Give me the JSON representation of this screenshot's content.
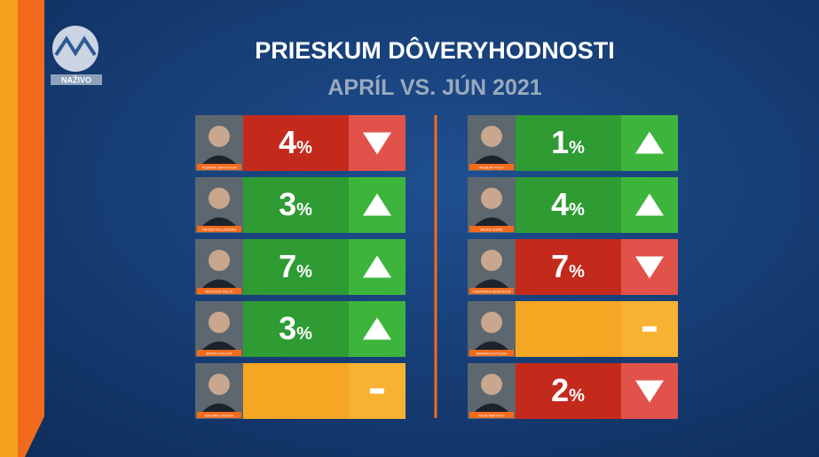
{
  "header": {
    "title": "PRIESKUM DÔVERYHODNOSTI",
    "subtitle": "APRÍL VS. JÚN 2021",
    "live_label": "NAŽIVO"
  },
  "columns": [
    [
      {
        "name": "ZUZANA ČAPUTOVÁ",
        "change": 4,
        "unit": "%",
        "direction": "down"
      },
      {
        "name": "PETER PELLEGRINI",
        "change": 3,
        "unit": "%",
        "direction": "up"
      },
      {
        "name": "RICHARD SULÍK",
        "change": 7,
        "unit": "%",
        "direction": "up"
      },
      {
        "name": "BORIS KOLLÁR",
        "change": 3,
        "unit": "%",
        "direction": "up"
      },
      {
        "name": "EDUARD HEGER",
        "change": null,
        "unit": null,
        "direction": "none"
      }
    ],
    [
      {
        "name": "ROBERT FICO",
        "change": 1,
        "unit": "%",
        "direction": "up"
      },
      {
        "name": "MILAN UHRÍK",
        "change": 4,
        "unit": "%",
        "direction": "up"
      },
      {
        "name": "VERONIKA REMIŠOVÁ",
        "change": 7,
        "unit": "%",
        "direction": "down"
      },
      {
        "name": "MARIAN KOTLEBA",
        "change": null,
        "unit": null,
        "direction": "none"
      },
      {
        "name": "IGOR MATOVIČ",
        "change": 2,
        "unit": "%",
        "direction": "down"
      }
    ]
  ]
}
